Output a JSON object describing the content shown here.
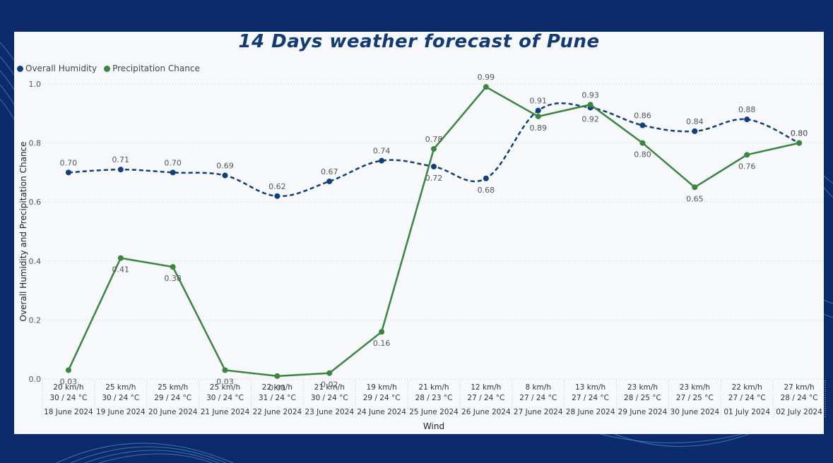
{
  "chart_data": {
    "type": "line",
    "title": "14 Days weather forecast of Pune",
    "xlabel": "Wind",
    "ylabel": "Overall Humidity and Precipitation Chance",
    "ylim": [
      0,
      1.0
    ],
    "yticks": [
      "0.0",
      "0.2",
      "0.4",
      "0.6",
      "0.8",
      "1.0"
    ],
    "grid": true,
    "legend_position": "top-left",
    "categories": [
      {
        "wind": "20 km/h",
        "temp": "30 / 24 °C",
        "date": "18 June 2024"
      },
      {
        "wind": "25 km/h",
        "temp": "30 / 24 °C",
        "date": "19 June 2024"
      },
      {
        "wind": "25 km/h",
        "temp": "29 / 24 °C",
        "date": "20 June 2024"
      },
      {
        "wind": "25 km/h",
        "temp": "30 / 24 °C",
        "date": "21 June 2024"
      },
      {
        "wind": "22 km/h",
        "temp": "31 / 24 °C",
        "date": "22 June 2024"
      },
      {
        "wind": "21 km/h",
        "temp": "30 / 24 °C",
        "date": "23 June 2024"
      },
      {
        "wind": "19 km/h",
        "temp": "29 / 24 °C",
        "date": "24 June 2024"
      },
      {
        "wind": "21 km/h",
        "temp": "28 / 23 °C",
        "date": "25 June 2024"
      },
      {
        "wind": "12 km/h",
        "temp": "27 / 24 °C",
        "date": "26 June 2024"
      },
      {
        "wind": "8 km/h",
        "temp": "27 / 24 °C",
        "date": "27 June 2024"
      },
      {
        "wind": "13 km/h",
        "temp": "27 / 24 °C",
        "date": "28 June 2024"
      },
      {
        "wind": "23 km/h",
        "temp": "28 / 25 °C",
        "date": "29 June 2024"
      },
      {
        "wind": "23 km/h",
        "temp": "27 / 25 °C",
        "date": "30 June 2024"
      },
      {
        "wind": "22 km/h",
        "temp": "27 / 24 °C",
        "date": "01 July 2024"
      },
      {
        "wind": "27 km/h",
        "temp": "28 / 24 °C",
        "date": "02 July 2024"
      }
    ],
    "series": [
      {
        "name": "Overall Humidity",
        "color": "#123f7a",
        "style": "dashed",
        "values": [
          0.7,
          0.71,
          0.7,
          0.69,
          0.62,
          0.67,
          0.74,
          0.72,
          0.68,
          0.91,
          0.92,
          0.86,
          0.84,
          0.88,
          0.8
        ],
        "labels": [
          "0.70",
          "0.71",
          "0.70",
          "0.69",
          "0.62",
          "0.67",
          "0.74",
          "0.72",
          "0.68",
          "0.91",
          "0.92",
          "0.86",
          "0.84",
          "0.88",
          "0.80"
        ]
      },
      {
        "name": "Precipitation Chance",
        "color": "#3a853f",
        "style": "solid",
        "values": [
          0.03,
          0.41,
          0.38,
          0.03,
          0.01,
          0.02,
          0.16,
          0.78,
          0.99,
          0.89,
          0.93,
          0.8,
          0.65,
          0.76,
          0.8
        ],
        "labels": [
          "0.03",
          "0.41",
          "0.38",
          "0.03",
          "0.01",
          "0.02",
          "0.16",
          "0.78",
          "0.99",
          "0.89",
          "0.93",
          "0.80",
          "0.65",
          "0.76",
          "0.80"
        ]
      }
    ]
  }
}
